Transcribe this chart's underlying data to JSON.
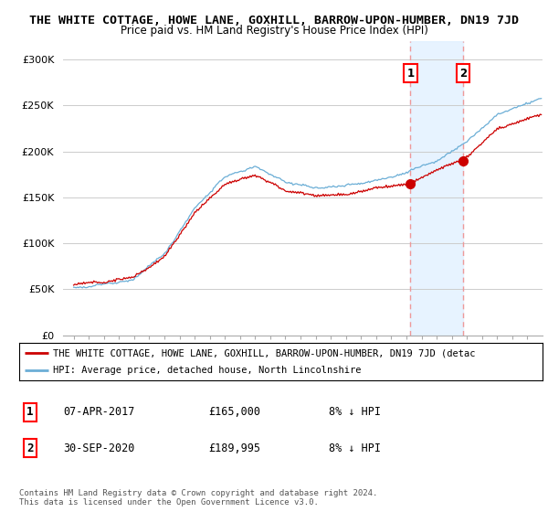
{
  "title": "THE WHITE COTTAGE, HOWE LANE, GOXHILL, BARROW-UPON-HUMBER, DN19 7JD",
  "subtitle": "Price paid vs. HM Land Registry's House Price Index (HPI)",
  "ylim": [
    0,
    320000
  ],
  "yticks": [
    0,
    50000,
    100000,
    150000,
    200000,
    250000,
    300000
  ],
  "ytick_labels": [
    "£0",
    "£50K",
    "£100K",
    "£150K",
    "£200K",
    "£250K",
    "£300K"
  ],
  "hpi_color": "#6baed6",
  "price_color": "#cc0000",
  "shade_color": "#ddeeff",
  "marker1_year": 2017.27,
  "marker2_year": 2020.75,
  "marker1_price": 165000,
  "marker2_price": 189995,
  "legend_label1": "THE WHITE COTTAGE, HOWE LANE, GOXHILL, BARROW-UPON-HUMBER, DN19 7JD (detac",
  "legend_label2": "HPI: Average price, detached house, North Lincolnshire",
  "table_row1_num": "1",
  "table_row1_date": "07-APR-2017",
  "table_row1_price": "£165,000",
  "table_row1_hpi": "8% ↓ HPI",
  "table_row2_num": "2",
  "table_row2_date": "30-SEP-2020",
  "table_row2_price": "£189,995",
  "table_row2_hpi": "8% ↓ HPI",
  "footer": "Contains HM Land Registry data © Crown copyright and database right 2024.\nThis data is licensed under the Open Government Licence v3.0.",
  "bg_color": "#ffffff",
  "grid_color": "#cccccc",
  "vline_color": "#ee9999"
}
